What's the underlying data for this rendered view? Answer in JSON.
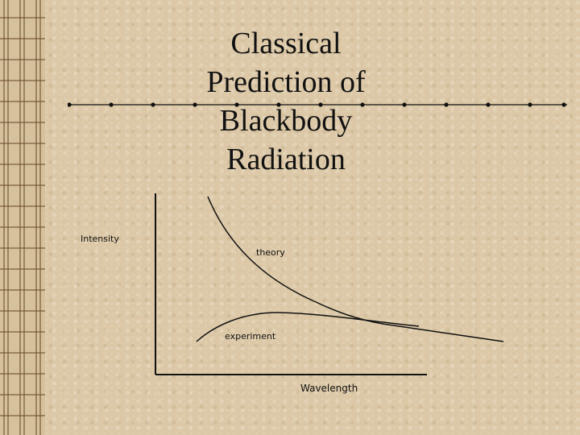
{
  "title_lines": [
    "Classical",
    "Prediction of",
    "Blackbody",
    "Radiation"
  ],
  "colors": {
    "background": "#dcc8a6",
    "ink": "#111111"
  },
  "chart_data": {
    "type": "line",
    "xlabel": "Wavelength",
    "ylabel": "Intensity",
    "annotations": [
      "theory",
      "experiment"
    ]
  }
}
